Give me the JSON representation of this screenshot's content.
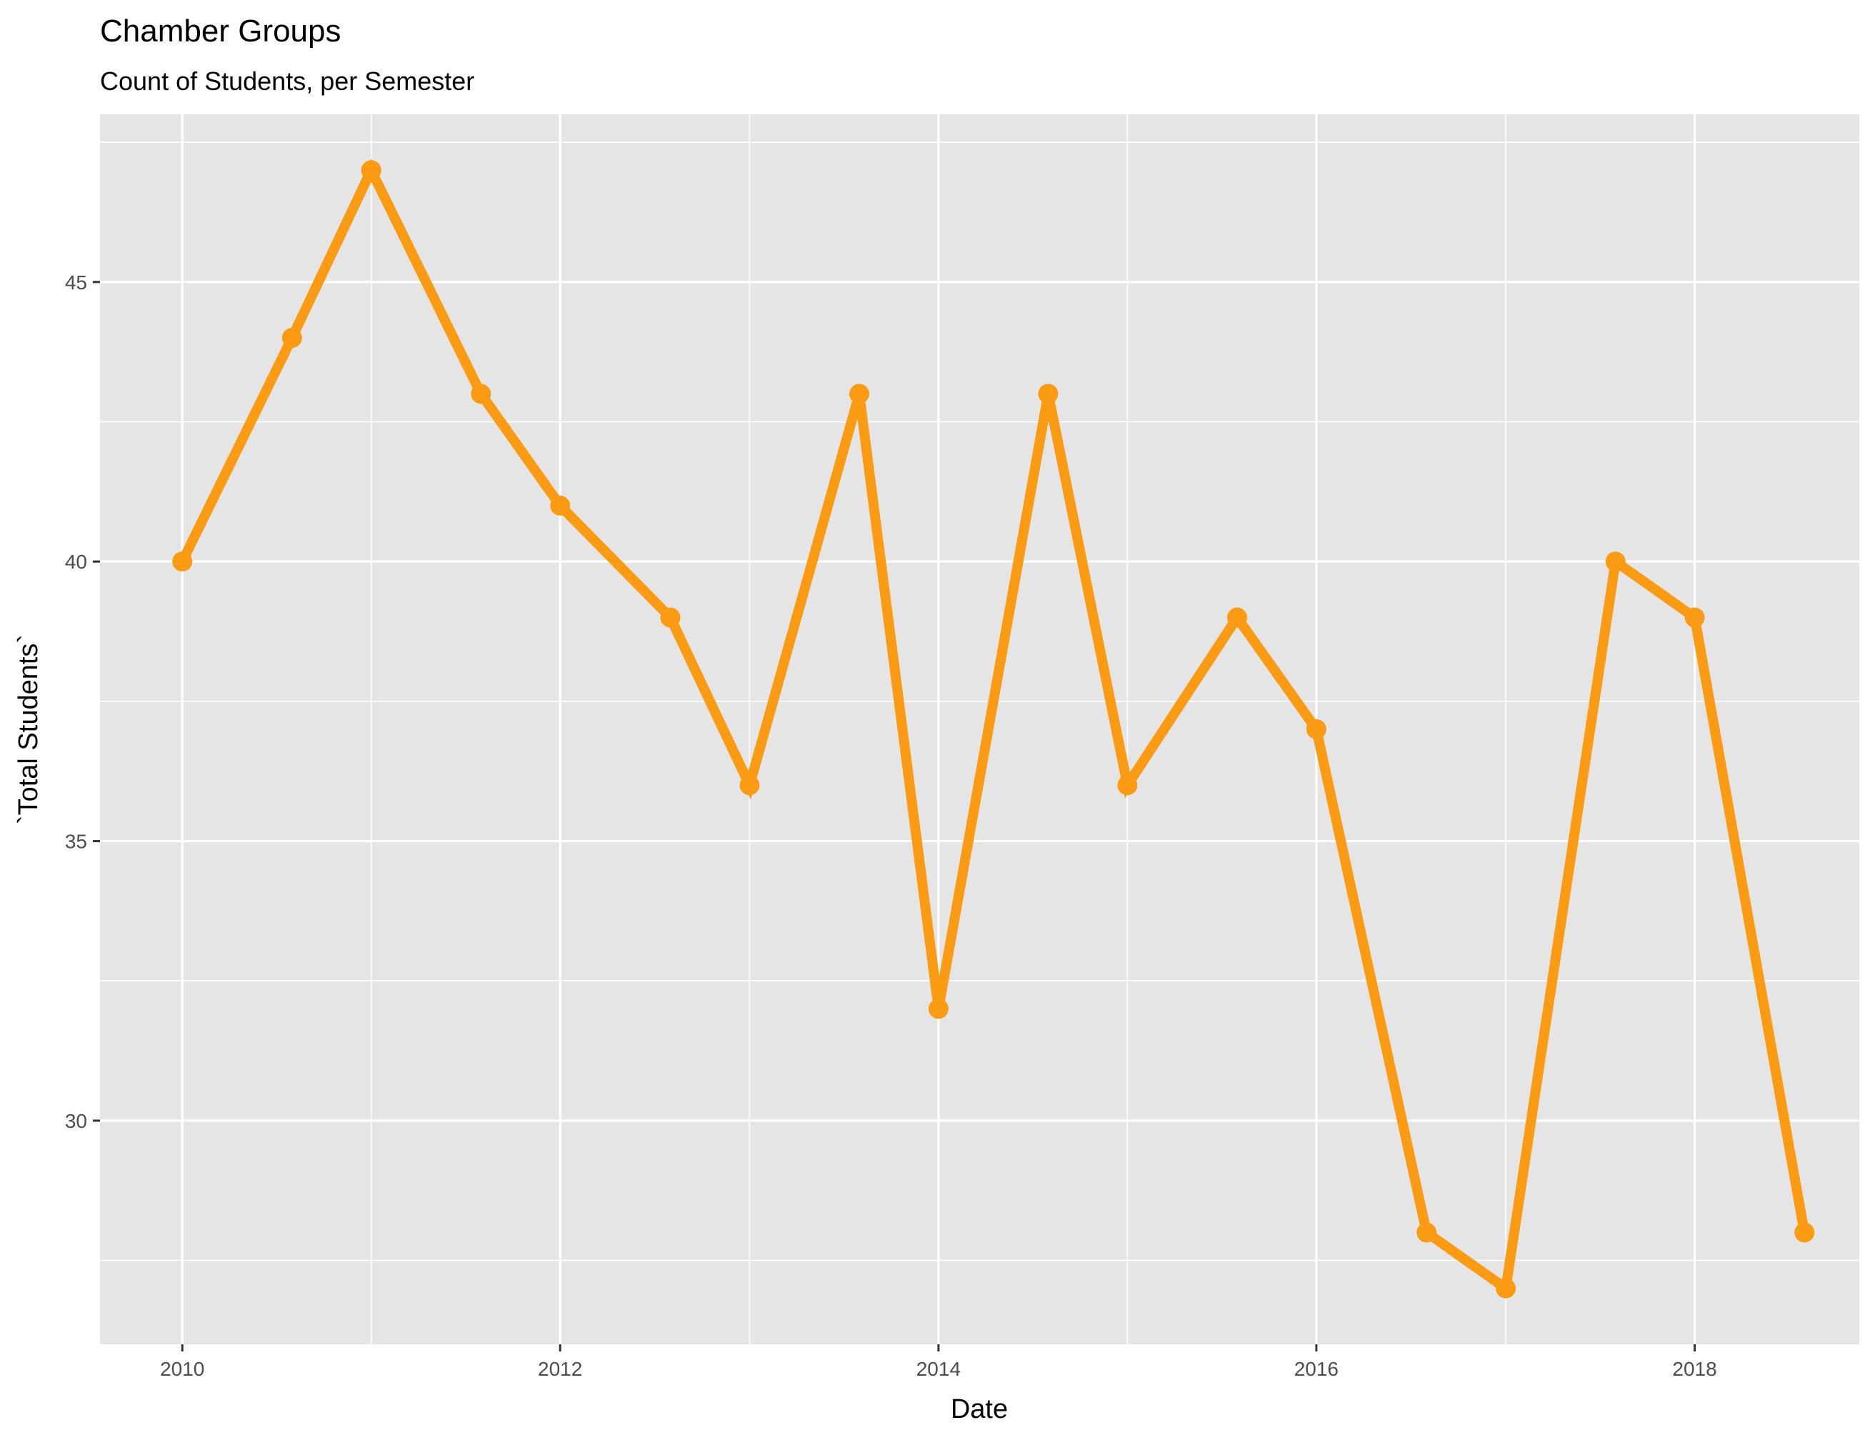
{
  "chart_data": {
    "type": "line",
    "title": "Chamber Groups",
    "subtitle": "Count of Students, per Semester",
    "xlabel": "Date",
    "ylabel": "`Total Students`",
    "x_ticks": [
      "2010",
      "2012",
      "2014",
      "2016",
      "2018"
    ],
    "y_ticks": [
      "30",
      "35",
      "40",
      "45"
    ],
    "xlim": [
      "2009-07-26",
      "2018-11-15"
    ],
    "ylim": [
      26.0,
      48.0
    ],
    "grid": true,
    "legend": "none",
    "colors": {
      "line": "#FB9A13",
      "panel_background": "#E5E5E5",
      "grid": "#FFFFFF"
    },
    "series": [
      {
        "x": [
          "2010-01-01",
          "2010-08-01",
          "2011-01-01",
          "2011-08-01",
          "2012-01-01",
          "2012-08-01",
          "2013-01-01",
          "2013-08-01",
          "2014-01-01",
          "2014-08-01",
          "2015-01-01",
          "2015-08-01",
          "2016-01-01",
          "2016-08-01",
          "2017-01-01",
          "2017-08-01",
          "2018-01-01",
          "2018-08-01"
        ],
        "values": [
          40,
          44,
          47,
          43,
          41,
          39,
          36,
          43,
          32,
          43,
          36,
          39,
          37,
          28,
          27,
          40,
          39,
          28
        ]
      }
    ]
  }
}
